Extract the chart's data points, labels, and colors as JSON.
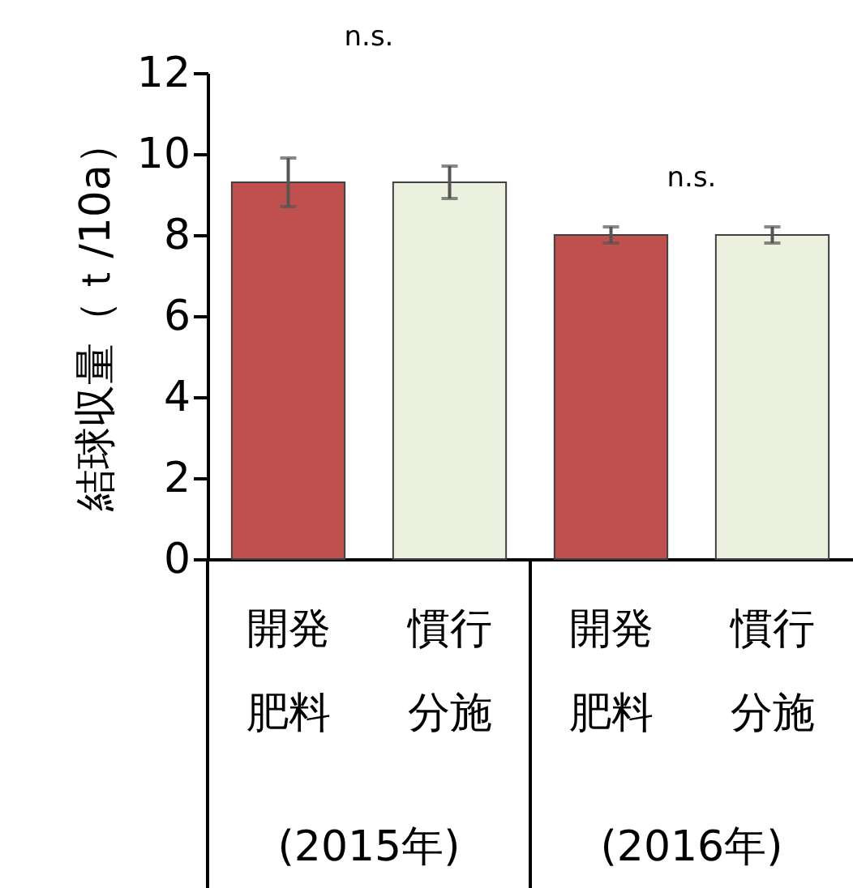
{
  "chart_data": {
    "type": "bar",
    "ylabel": "結球収量（ｔ/10a）",
    "categories": [
      "開発肥料",
      "慣行分施",
      "開発肥料",
      "慣行分施"
    ],
    "values": [
      9.3,
      9.3,
      8.0,
      8.0
    ],
    "errors": [
      0.6,
      0.4,
      0.2,
      0.2
    ],
    "colors": [
      "#c0504d",
      "#ebf1de",
      "#c0504d",
      "#ebf1de"
    ],
    "ylim": [
      0,
      12
    ],
    "yticks": [
      0,
      2,
      4,
      6,
      8,
      10,
      12
    ],
    "grid": false,
    "annotations": [
      "n.s.",
      "n.s.",
      "(2015年)",
      "(2016年)"
    ]
  }
}
